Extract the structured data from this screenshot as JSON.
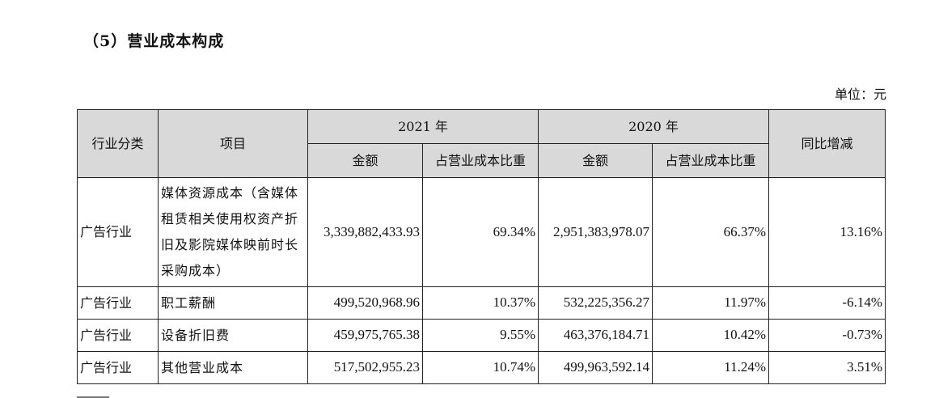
{
  "title": "（5）营业成本构成",
  "unit": "单位：元",
  "header": {
    "industry": "行业分类",
    "item": "项目",
    "year1": "2021 年",
    "year2": "2020 年",
    "yoy": "同比增减",
    "amount": "金额",
    "ratio": "占营业成本比重"
  },
  "rows": [
    {
      "industry": "广告行业",
      "item": "媒体资源成本（含媒体租赁相关使用权资产折旧及影院媒体映前时长采购成本）",
      "amount_2021": "3,339,882,433.93",
      "ratio_2021": "69.34%",
      "amount_2020": "2,951,383,978.07",
      "ratio_2020": "66.37%",
      "yoy": "13.16%"
    },
    {
      "industry": "广告行业",
      "item": "职工薪酬",
      "amount_2021": "499,520,968.96",
      "ratio_2021": "10.37%",
      "amount_2020": "532,225,356.27",
      "ratio_2020": "11.97%",
      "yoy": "-6.14%"
    },
    {
      "industry": "广告行业",
      "item": "设备折旧费",
      "amount_2021": "459,975,765.38",
      "ratio_2021": "9.55%",
      "amount_2020": "463,376,184.71",
      "ratio_2020": "10.42%",
      "yoy": "-0.73%"
    },
    {
      "industry": "广告行业",
      "item": "其他营业成本",
      "amount_2021": "517,502,955.23",
      "ratio_2021": "10.74%",
      "amount_2020": "499,963,592.14",
      "ratio_2020": "11.24%",
      "yoy": "3.51%"
    }
  ]
}
